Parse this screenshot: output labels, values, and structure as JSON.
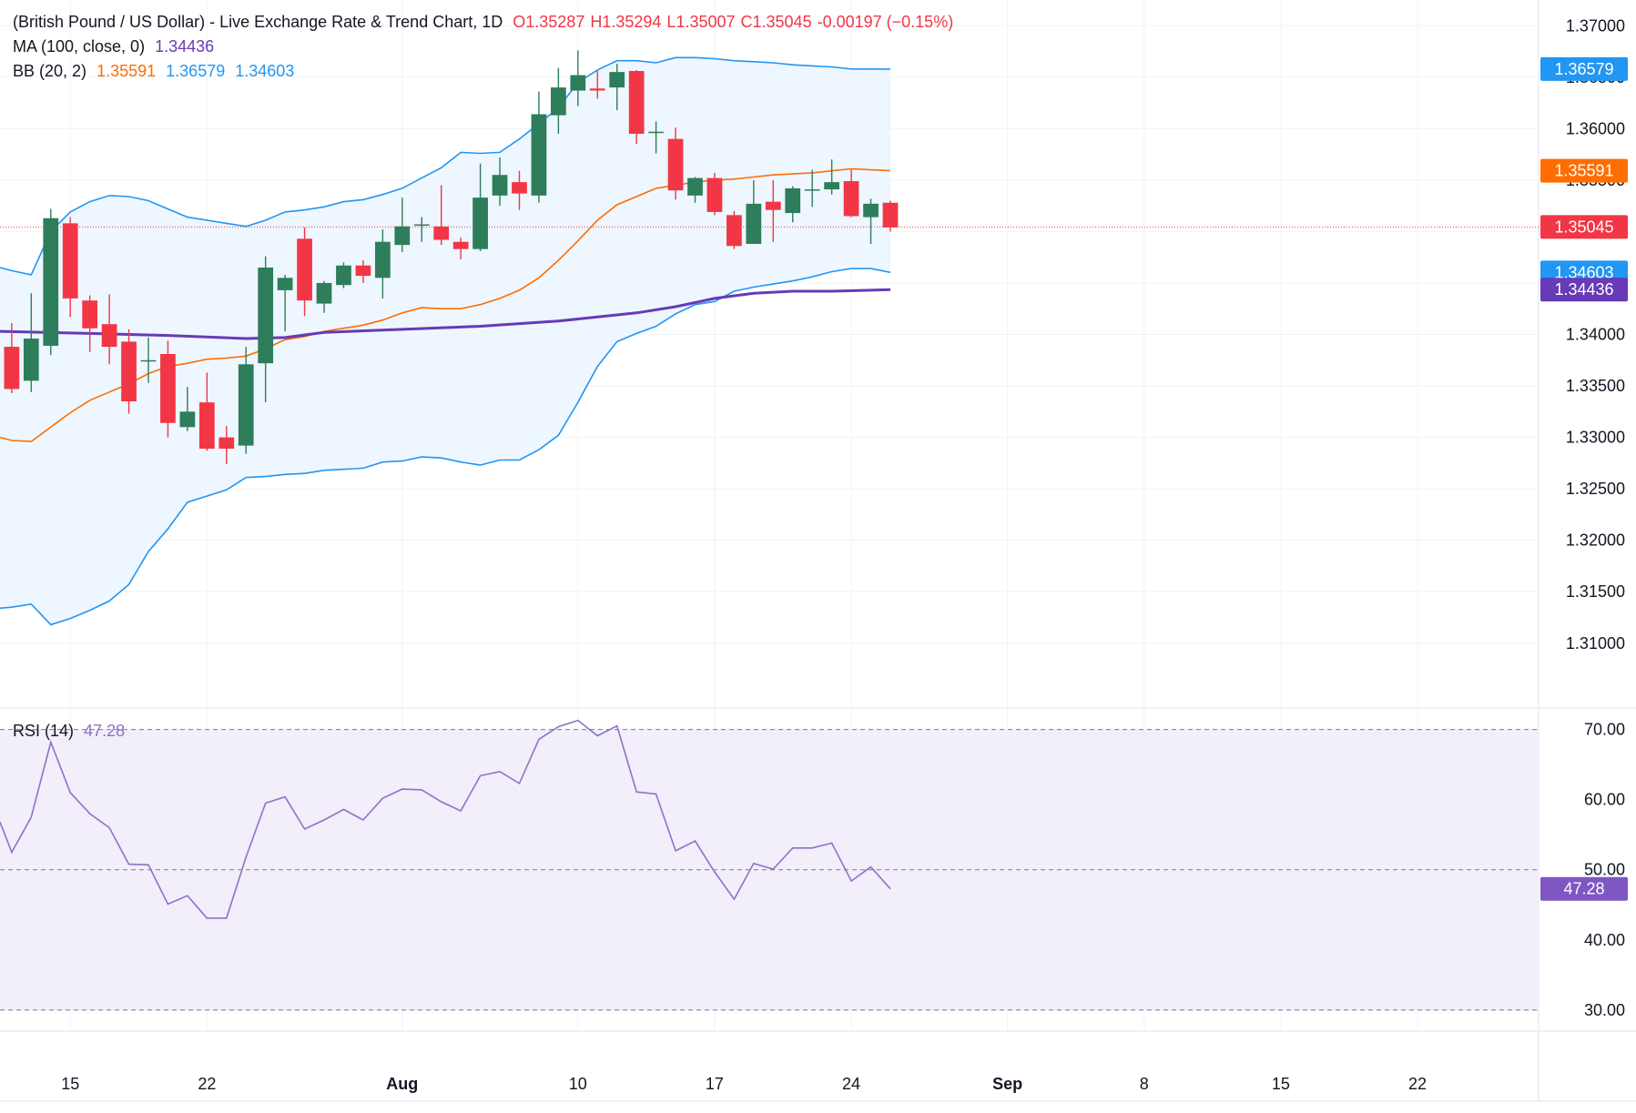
{
  "header": {
    "title": "(British Pound / US Dollar) - Live Exchange Rate & Trend Chart, 1D",
    "ohlc": {
      "open_label": "O",
      "open": "1.35287",
      "high_label": "H",
      "high": "1.35294",
      "low_label": "L",
      "low": "1.35007",
      "close_label": "C",
      "close": "1.35045",
      "change": "-0.00197 (−0.15%)"
    }
  },
  "indicators": {
    "ma": {
      "label": "MA (100, close, 0)",
      "value": "1.34436"
    },
    "bb": {
      "label": "BB (20, 2)",
      "basis": "1.35591",
      "upper": "1.36579",
      "lower": "1.34603"
    },
    "rsi": {
      "label": "RSI (14)",
      "value": "47.28"
    }
  },
  "colors": {
    "up": "#2e7d5b",
    "down": "#f23645",
    "ma": "#673ab7",
    "bb_basis": "#ff6d00",
    "bb_band": "#2196f3",
    "bb_fill": "#eef6ff",
    "rsi_line": "#8e72c7",
    "rsi_fill": "#f2eefa"
  },
  "chart_data": {
    "type": "candlestick",
    "price_axis": {
      "ticks": [
        "1.37000",
        "1.36500",
        "1.36000",
        "1.35500",
        "1.35000",
        "1.34500",
        "1.34000",
        "1.33500",
        "1.33000",
        "1.32500",
        "1.32000",
        "1.31500",
        "1.31000"
      ],
      "range": [
        1.3037,
        1.3725
      ]
    },
    "price_labels": [
      {
        "name": "bb-upper",
        "value": 1.36579,
        "text": "1.36579",
        "color": "#2196f3"
      },
      {
        "name": "bb-basis",
        "value": 1.35591,
        "text": "1.35591",
        "color": "#ff6d00"
      },
      {
        "name": "last-price",
        "value": 1.35045,
        "text": "1.35045",
        "color": "#f23645"
      },
      {
        "name": "bb-lower",
        "value": 1.34603,
        "text": "1.34603",
        "color": "#2196f3"
      },
      {
        "name": "ma-100",
        "value": 1.34436,
        "text": "1.34436",
        "color": "#673ab7"
      }
    ],
    "x_axis": {
      "ticks": [
        {
          "label": "15",
          "day": 15,
          "bold": false
        },
        {
          "label": "22",
          "day": 22,
          "bold": false
        },
        {
          "label": "Aug",
          "day": 32,
          "bold": true
        },
        {
          "label": "10",
          "day": 41,
          "bold": false
        },
        {
          "label": "17",
          "day": 48,
          "bold": false
        },
        {
          "label": "24",
          "day": 55,
          "bold": false
        },
        {
          "label": "Sep",
          "day": 63,
          "bold": true
        },
        {
          "label": "8",
          "day": 70,
          "bold": false
        },
        {
          "label": "15",
          "day": 77,
          "bold": false
        },
        {
          "label": "22",
          "day": 84,
          "bold": false
        }
      ],
      "range": [
        11.4,
        90.2
      ]
    },
    "candles": [
      {
        "day": 12,
        "o": 1.3388,
        "h": 1.3411,
        "l": 1.3343,
        "c": 1.3347
      },
      {
        "day": 13,
        "o": 1.3355,
        "h": 1.344,
        "l": 1.3344,
        "c": 1.3396
      },
      {
        "day": 14,
        "o": 1.3389,
        "h": 1.3522,
        "l": 1.338,
        "c": 1.3513
      },
      {
        "day": 15,
        "o": 1.3508,
        "h": 1.3514,
        "l": 1.3417,
        "c": 1.3435
      },
      {
        "day": 16,
        "o": 1.3433,
        "h": 1.3438,
        "l": 1.3383,
        "c": 1.3406
      },
      {
        "day": 17,
        "o": 1.341,
        "h": 1.3439,
        "l": 1.3371,
        "c": 1.3388
      },
      {
        "day": 18,
        "o": 1.3393,
        "h": 1.3405,
        "l": 1.3323,
        "c": 1.3335
      },
      {
        "day": 19,
        "o": 1.3374,
        "h": 1.3397,
        "l": 1.3353,
        "c": 1.3375
      },
      {
        "day": 20,
        "o": 1.3381,
        "h": 1.3394,
        "l": 1.33,
        "c": 1.3314
      },
      {
        "day": 21,
        "o": 1.331,
        "h": 1.3349,
        "l": 1.3306,
        "c": 1.3325
      },
      {
        "day": 22,
        "o": 1.3334,
        "h": 1.3363,
        "l": 1.3287,
        "c": 1.3289
      },
      {
        "day": 23,
        "o": 1.33,
        "h": 1.3311,
        "l": 1.3274,
        "c": 1.3289
      },
      {
        "day": 24,
        "o": 1.3292,
        "h": 1.3388,
        "l": 1.3284,
        "c": 1.3371
      },
      {
        "day": 25,
        "o": 1.3372,
        "h": 1.3476,
        "l": 1.3334,
        "c": 1.3465
      },
      {
        "day": 26,
        "o": 1.3443,
        "h": 1.3458,
        "l": 1.3403,
        "c": 1.3455
      },
      {
        "day": 27,
        "o": 1.3493,
        "h": 1.3504,
        "l": 1.3418,
        "c": 1.3433
      },
      {
        "day": 28,
        "o": 1.343,
        "h": 1.3452,
        "l": 1.3421,
        "c": 1.345
      },
      {
        "day": 29,
        "o": 1.3448,
        "h": 1.347,
        "l": 1.3445,
        "c": 1.3467
      },
      {
        "day": 30,
        "o": 1.3467,
        "h": 1.3472,
        "l": 1.345,
        "c": 1.3457
      },
      {
        "day": 31,
        "o": 1.3455,
        "h": 1.3502,
        "l": 1.3435,
        "c": 1.349
      },
      {
        "day": 32,
        "o": 1.3487,
        "h": 1.3533,
        "l": 1.348,
        "c": 1.3505
      },
      {
        "day": 33,
        "o": 1.3507,
        "h": 1.3514,
        "l": 1.349,
        "c": 1.3507
      },
      {
        "day": 34,
        "o": 1.3505,
        "h": 1.3545,
        "l": 1.3487,
        "c": 1.3492
      },
      {
        "day": 35,
        "o": 1.349,
        "h": 1.3494,
        "l": 1.3473,
        "c": 1.3483
      },
      {
        "day": 36,
        "o": 1.3483,
        "h": 1.3566,
        "l": 1.3481,
        "c": 1.3533
      },
      {
        "day": 37,
        "o": 1.3535,
        "h": 1.3572,
        "l": 1.3525,
        "c": 1.3555
      },
      {
        "day": 38,
        "o": 1.3548,
        "h": 1.3559,
        "l": 1.3521,
        "c": 1.3537
      },
      {
        "day": 39,
        "o": 1.3535,
        "h": 1.3636,
        "l": 1.3528,
        "c": 1.3614
      },
      {
        "day": 40,
        "o": 1.3613,
        "h": 1.3659,
        "l": 1.3595,
        "c": 1.364
      },
      {
        "day": 41,
        "o": 1.3637,
        "h": 1.3676,
        "l": 1.3622,
        "c": 1.3652
      },
      {
        "day": 42,
        "o": 1.3639,
        "h": 1.3656,
        "l": 1.3629,
        "c": 1.3637
      },
      {
        "day": 43,
        "o": 1.364,
        "h": 1.3663,
        "l": 1.3618,
        "c": 1.3655
      },
      {
        "day": 44,
        "o": 1.3656,
        "h": 1.3657,
        "l": 1.3585,
        "c": 1.3595
      },
      {
        "day": 45,
        "o": 1.3597,
        "h": 1.3607,
        "l": 1.3576,
        "c": 1.3597
      },
      {
        "day": 46,
        "o": 1.359,
        "h": 1.3601,
        "l": 1.3531,
        "c": 1.354
      },
      {
        "day": 47,
        "o": 1.3535,
        "h": 1.3553,
        "l": 1.3528,
        "c": 1.3552
      },
      {
        "day": 48,
        "o": 1.3552,
        "h": 1.3557,
        "l": 1.3516,
        "c": 1.3519
      },
      {
        "day": 49,
        "o": 1.3516,
        "h": 1.352,
        "l": 1.3483,
        "c": 1.3486
      },
      {
        "day": 50,
        "o": 1.3488,
        "h": 1.355,
        "l": 1.3488,
        "c": 1.3527
      },
      {
        "day": 51,
        "o": 1.3529,
        "h": 1.355,
        "l": 1.349,
        "c": 1.3521
      },
      {
        "day": 52,
        "o": 1.3518,
        "h": 1.3544,
        "l": 1.3509,
        "c": 1.3542
      },
      {
        "day": 53,
        "o": 1.354,
        "h": 1.356,
        "l": 1.3524,
        "c": 1.3541
      },
      {
        "day": 54,
        "o": 1.3541,
        "h": 1.357,
        "l": 1.3536,
        "c": 1.3548
      },
      {
        "day": 55,
        "o": 1.3549,
        "h": 1.356,
        "l": 1.3514,
        "c": 1.3515
      },
      {
        "day": 56,
        "o": 1.3514,
        "h": 1.3532,
        "l": 1.3488,
        "c": 1.3527
      },
      {
        "day": 57,
        "o": 1.3528,
        "h": 1.353,
        "l": 1.35,
        "c": 1.3504
      }
    ],
    "ma_100": [
      [
        11.4,
        1.3403
      ],
      [
        16,
        1.3401
      ],
      [
        20,
        1.3399
      ],
      [
        24,
        1.3396
      ],
      [
        26,
        1.3397
      ],
      [
        28,
        1.3402
      ],
      [
        32,
        1.3405
      ],
      [
        36,
        1.3408
      ],
      [
        40,
        1.3413
      ],
      [
        44,
        1.3421
      ],
      [
        46,
        1.3427
      ],
      [
        48,
        1.3435
      ],
      [
        50,
        1.344
      ],
      [
        52,
        1.3442
      ],
      [
        54,
        1.3442
      ],
      [
        56,
        1.3443
      ],
      [
        57,
        1.34436
      ]
    ],
    "bb_upper": [
      [
        11.4,
        1.3465
      ],
      [
        12,
        1.3462
      ],
      [
        13,
        1.3458
      ],
      [
        14,
        1.35
      ],
      [
        15,
        1.3519
      ],
      [
        16,
        1.3529
      ],
      [
        17,
        1.3535
      ],
      [
        18,
        1.3534
      ],
      [
        19,
        1.353
      ],
      [
        20,
        1.3522
      ],
      [
        21,
        1.3514
      ],
      [
        22,
        1.3511
      ],
      [
        23,
        1.3508
      ],
      [
        24,
        1.3505
      ],
      [
        25,
        1.3511
      ],
      [
        26,
        1.3519
      ],
      [
        27,
        1.3521
      ],
      [
        28,
        1.3524
      ],
      [
        29,
        1.3529
      ],
      [
        30,
        1.3531
      ],
      [
        31,
        1.3536
      ],
      [
        32,
        1.3542
      ],
      [
        33,
        1.3552
      ],
      [
        34,
        1.3562
      ],
      [
        35,
        1.3577
      ],
      [
        36,
        1.3576
      ],
      [
        37,
        1.3577
      ],
      [
        38,
        1.359
      ],
      [
        39,
        1.3605
      ],
      [
        40,
        1.362
      ],
      [
        41,
        1.3645
      ],
      [
        42,
        1.3657
      ],
      [
        43,
        1.3666
      ],
      [
        44,
        1.3666
      ],
      [
        45,
        1.3664
      ],
      [
        46,
        1.3669
      ],
      [
        47,
        1.3669
      ],
      [
        48,
        1.3668
      ],
      [
        49,
        1.3666
      ],
      [
        50,
        1.3665
      ],
      [
        51,
        1.3664
      ],
      [
        52,
        1.3662
      ],
      [
        53,
        1.3661
      ],
      [
        54,
        1.366
      ],
      [
        55,
        1.3658
      ],
      [
        56,
        1.3658
      ],
      [
        57,
        1.36579
      ]
    ],
    "bb_basis": [
      [
        11.4,
        1.33
      ],
      [
        12,
        1.3297
      ],
      [
        13,
        1.3296
      ],
      [
        14,
        1.331
      ],
      [
        15,
        1.3324
      ],
      [
        16,
        1.3336
      ],
      [
        17,
        1.3344
      ],
      [
        18,
        1.3352
      ],
      [
        19,
        1.3362
      ],
      [
        20,
        1.3369
      ],
      [
        21,
        1.3372
      ],
      [
        22,
        1.3376
      ],
      [
        23,
        1.3377
      ],
      [
        24,
        1.3379
      ],
      [
        25,
        1.3386
      ],
      [
        26,
        1.3395
      ],
      [
        27,
        1.3398
      ],
      [
        28,
        1.3403
      ],
      [
        29,
        1.3406
      ],
      [
        30,
        1.3409
      ],
      [
        31,
        1.3414
      ],
      [
        32,
        1.3421
      ],
      [
        33,
        1.3426
      ],
      [
        34,
        1.3425
      ],
      [
        35,
        1.3425
      ],
      [
        36,
        1.3429
      ],
      [
        37,
        1.3435
      ],
      [
        38,
        1.3443
      ],
      [
        39,
        1.3455
      ],
      [
        40,
        1.3472
      ],
      [
        41,
        1.3491
      ],
      [
        42,
        1.3511
      ],
      [
        43,
        1.3526
      ],
      [
        44,
        1.3534
      ],
      [
        45,
        1.3542
      ],
      [
        46,
        1.3545
      ],
      [
        47,
        1.3548
      ],
      [
        48,
        1.355
      ],
      [
        49,
        1.3551
      ],
      [
        50,
        1.3553
      ],
      [
        51,
        1.3555
      ],
      [
        52,
        1.3556
      ],
      [
        53,
        1.3557
      ],
      [
        54,
        1.3559
      ],
      [
        55,
        1.3561
      ],
      [
        56,
        1.356
      ],
      [
        57,
        1.35591
      ]
    ],
    "bb_lower": [
      [
        11.4,
        1.3134
      ],
      [
        12,
        1.3135
      ],
      [
        13,
        1.3138
      ],
      [
        14,
        1.3118
      ],
      [
        15,
        1.3124
      ],
      [
        16,
        1.3132
      ],
      [
        17,
        1.3141
      ],
      [
        18,
        1.3157
      ],
      [
        19,
        1.3189
      ],
      [
        20,
        1.3211
      ],
      [
        21,
        1.3237
      ],
      [
        22,
        1.3243
      ],
      [
        23,
        1.3249
      ],
      [
        24,
        1.3261
      ],
      [
        25,
        1.3262
      ],
      [
        26,
        1.3264
      ],
      [
        27,
        1.3265
      ],
      [
        28,
        1.3268
      ],
      [
        29,
        1.3269
      ],
      [
        30,
        1.327
      ],
      [
        31,
        1.3276
      ],
      [
        32,
        1.3277
      ],
      [
        33,
        1.3281
      ],
      [
        34,
        1.328
      ],
      [
        35,
        1.3276
      ],
      [
        36,
        1.3273
      ],
      [
        37,
        1.3278
      ],
      [
        38,
        1.3278
      ],
      [
        39,
        1.3288
      ],
      [
        40,
        1.3302
      ],
      [
        41,
        1.3334
      ],
      [
        42,
        1.3369
      ],
      [
        43,
        1.3393
      ],
      [
        44,
        1.3401
      ],
      [
        45,
        1.3408
      ],
      [
        46,
        1.342
      ],
      [
        47,
        1.3429
      ],
      [
        48,
        1.3432
      ],
      [
        49,
        1.3442
      ],
      [
        50,
        1.3446
      ],
      [
        51,
        1.3449
      ],
      [
        52,
        1.3452
      ],
      [
        53,
        1.3456
      ],
      [
        54,
        1.3461
      ],
      [
        55,
        1.3464
      ],
      [
        56,
        1.3464
      ],
      [
        57,
        1.34603
      ]
    ],
    "rsi": {
      "ticks": [
        "70.00",
        "60.00",
        "50.00",
        "40.00",
        "30.00"
      ],
      "range": [
        27,
        72.8
      ],
      "levels": [
        70,
        50,
        30
      ],
      "values": [
        [
          11.4,
          56.8
        ],
        [
          12,
          52.5
        ],
        [
          13,
          57.5
        ],
        [
          14,
          68.2
        ],
        [
          15,
          61.0
        ],
        [
          16,
          58.0
        ],
        [
          17,
          56.0
        ],
        [
          18,
          50.8
        ],
        [
          19,
          50.7
        ],
        [
          20,
          45.1
        ],
        [
          21,
          46.3
        ],
        [
          22,
          43.1
        ],
        [
          23,
          43.1
        ],
        [
          24,
          51.8
        ],
        [
          25,
          59.5
        ],
        [
          26,
          60.4
        ],
        [
          27,
          55.8
        ],
        [
          28,
          57.1
        ],
        [
          29,
          58.6
        ],
        [
          30,
          57.1
        ],
        [
          31,
          60.2
        ],
        [
          32,
          61.5
        ],
        [
          33,
          61.4
        ],
        [
          34,
          59.7
        ],
        [
          35,
          58.4
        ],
        [
          36,
          63.4
        ],
        [
          37,
          64.0
        ],
        [
          38,
          62.3
        ],
        [
          39,
          68.6
        ],
        [
          40,
          70.4
        ],
        [
          41,
          71.3
        ],
        [
          42,
          69.1
        ],
        [
          43,
          70.5
        ],
        [
          44,
          61.1
        ],
        [
          45,
          60.8
        ],
        [
          46,
          52.7
        ],
        [
          47,
          54.1
        ],
        [
          48,
          49.7
        ],
        [
          49,
          45.8
        ],
        [
          50,
          50.9
        ],
        [
          51,
          50.1
        ],
        [
          52,
          53.1
        ],
        [
          53,
          53.1
        ],
        [
          54,
          53.8
        ],
        [
          55,
          48.4
        ],
        [
          56,
          50.4
        ],
        [
          57,
          47.28
        ]
      ]
    }
  }
}
